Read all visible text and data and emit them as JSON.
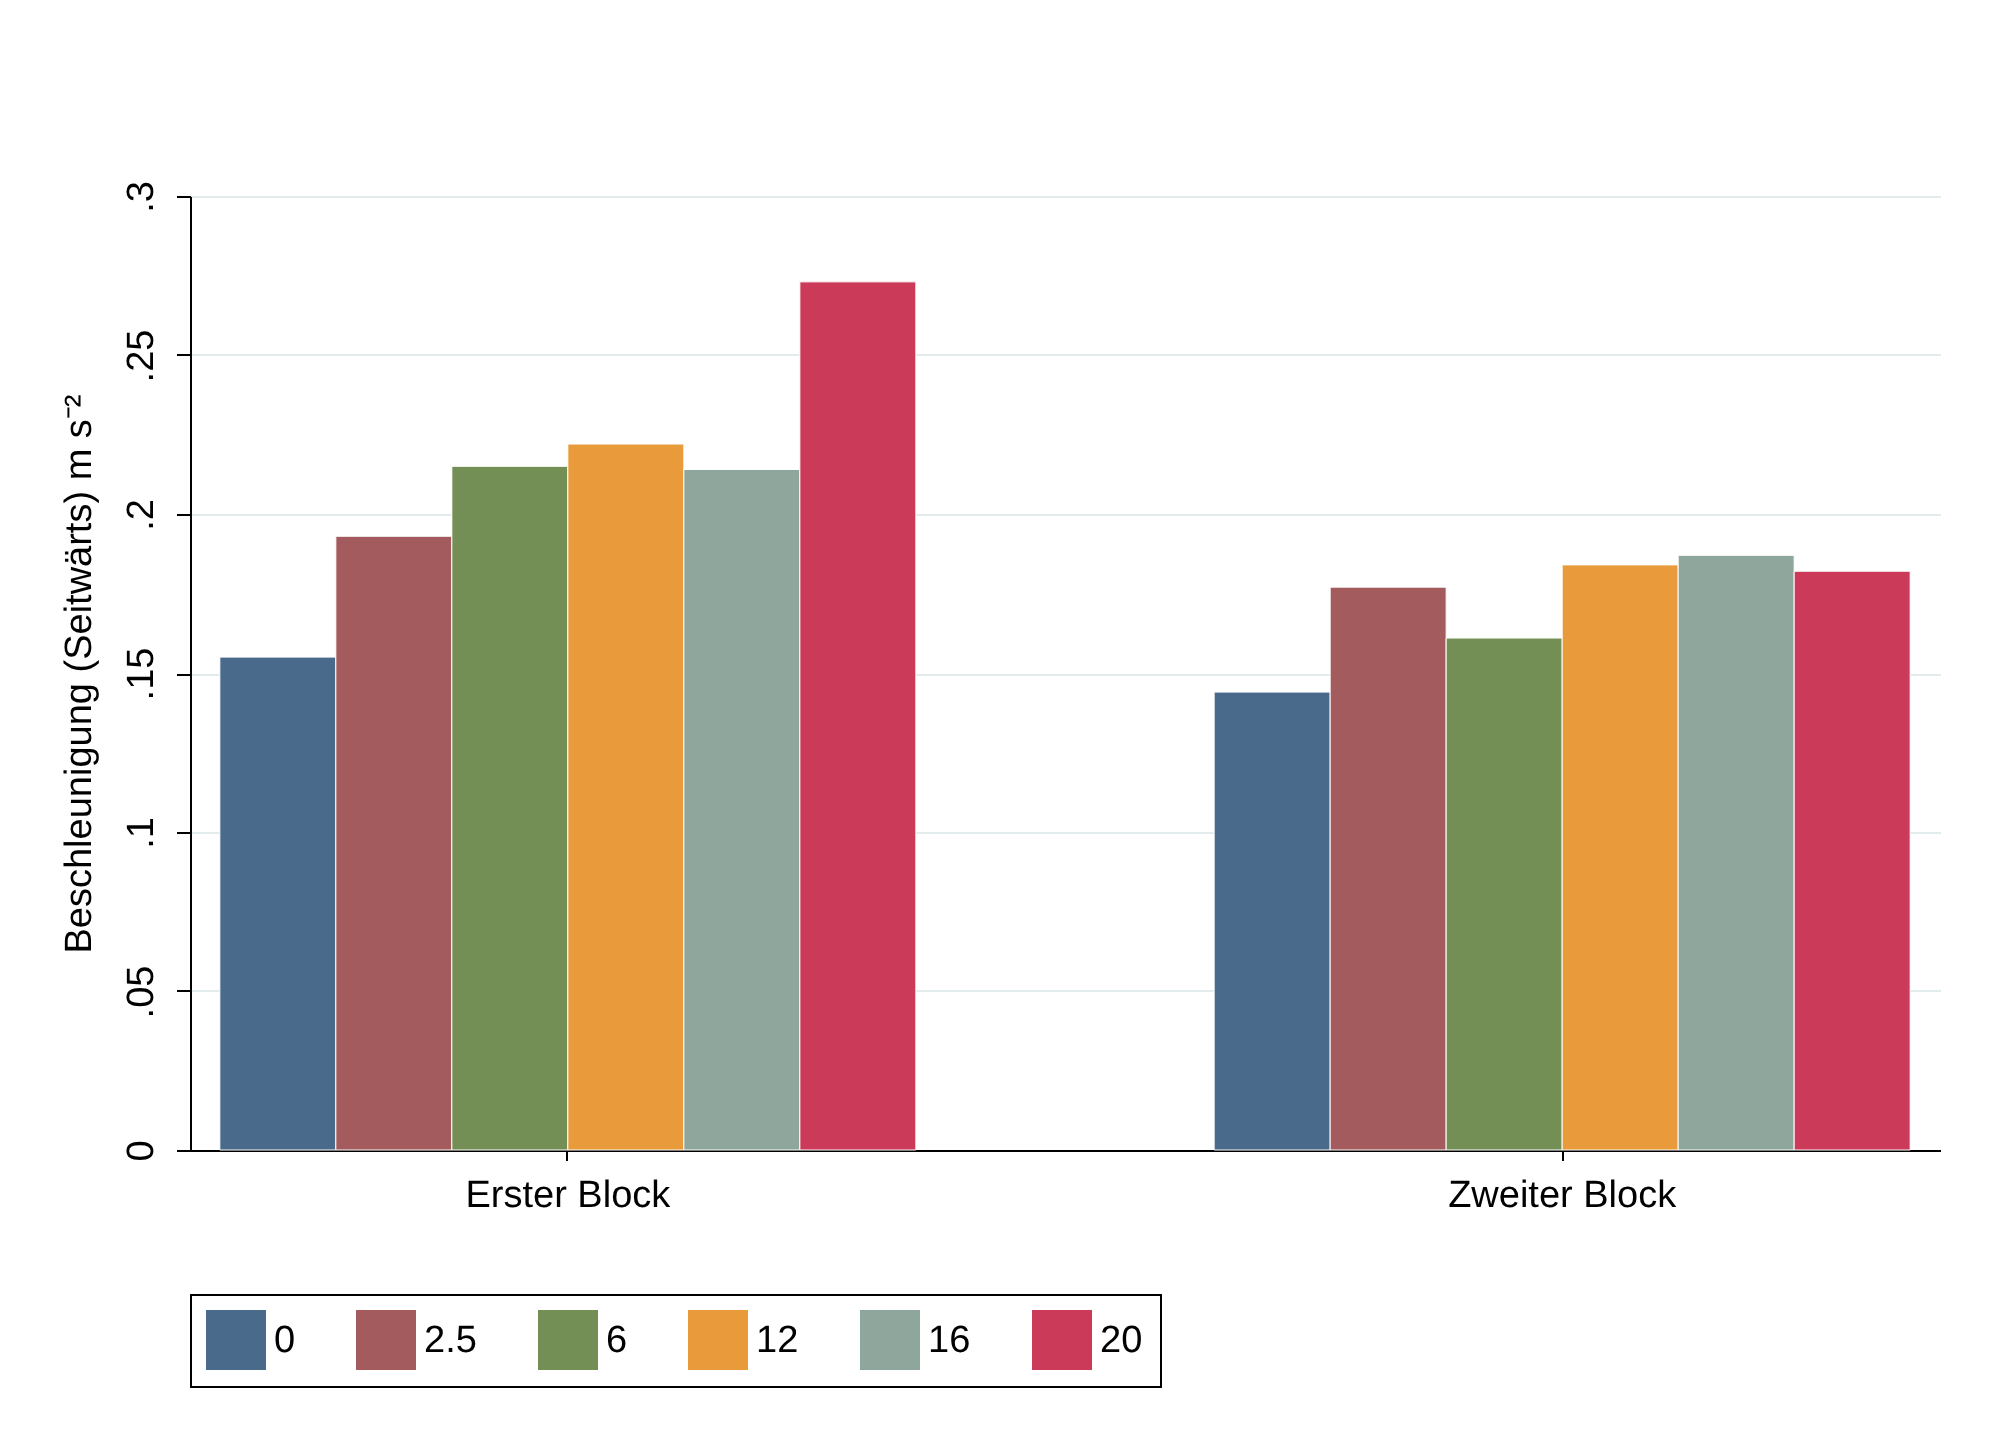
{
  "chart_data": {
    "type": "bar",
    "ylabel": "Beschleunigung (Seitwärts) m s⁻²",
    "categories": [
      "Erster Block",
      "Zweiter Block"
    ],
    "series": [
      {
        "name": "0",
        "color": "#4a6a8c",
        "values": [
          0.155,
          0.144
        ]
      },
      {
        "name": "2.5",
        "color": "#a45b5e",
        "values": [
          0.193,
          0.177
        ]
      },
      {
        "name": "6",
        "color": "#748f55",
        "values": [
          0.215,
          0.161
        ]
      },
      {
        "name": "12",
        "color": "#e99a3a",
        "values": [
          0.222,
          0.184
        ]
      },
      {
        "name": "16",
        "color": "#8ea69b",
        "values": [
          0.214,
          0.187
        ]
      },
      {
        "name": "20",
        "color": "#cc3a5a",
        "values": [
          0.273,
          0.182
        ]
      }
    ],
    "ylim": [
      0,
      0.3
    ],
    "yticks": [
      0,
      {
        "value": 0.05,
        "label": ".05"
      },
      {
        "value": 0.1,
        "label": ".1"
      },
      {
        "value": 0.15,
        "label": ".15"
      },
      {
        "value": 0.2,
        "label": ".2"
      },
      {
        "value": 0.25,
        "label": ".25"
      },
      {
        "value": 0.3,
        "label": ".3"
      }
    ],
    "grid": "y",
    "legend": "bottom"
  }
}
